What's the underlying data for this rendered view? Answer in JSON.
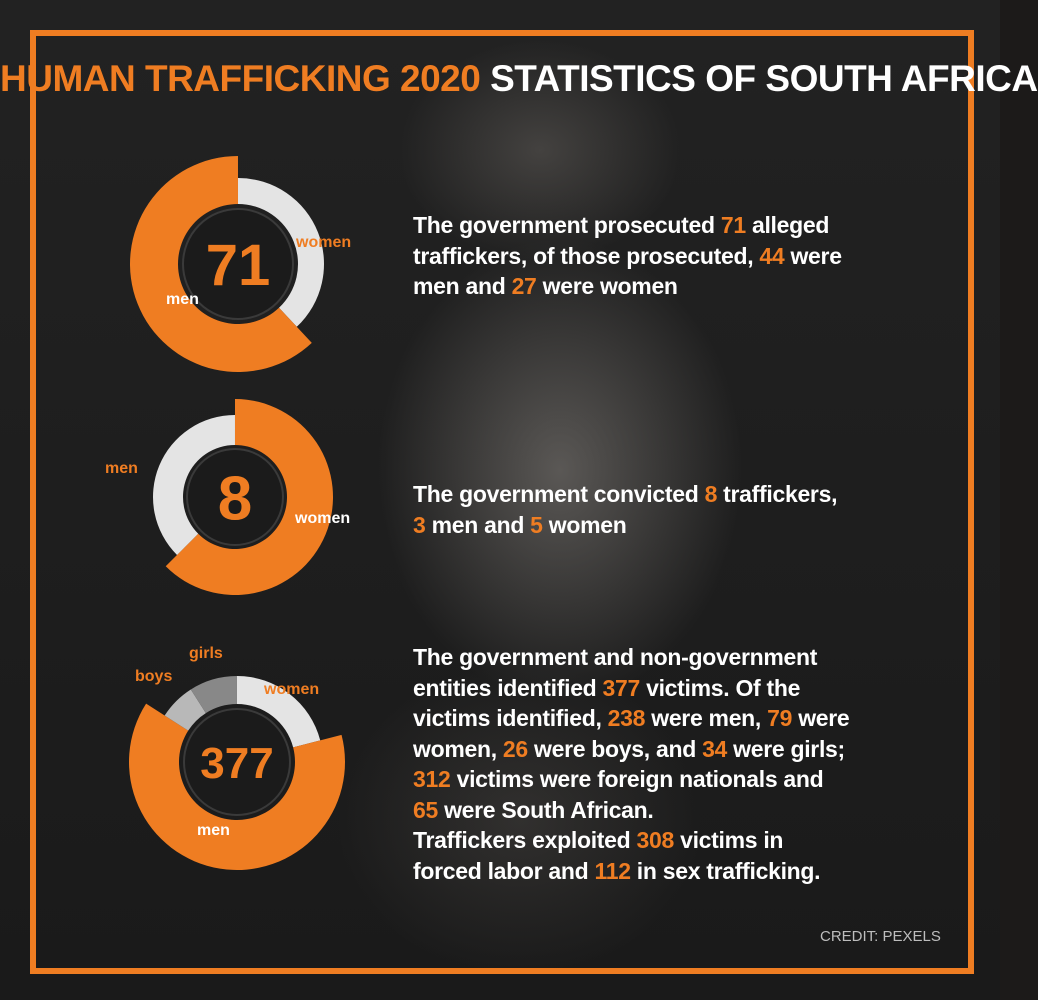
{
  "title": {
    "part1": "HUMAN TRAFFICKING 2020",
    "part2": "STATISTICS OF SOUTH AFRICA"
  },
  "colors": {
    "accent": "#ef7d22",
    "light": "#e4e4e4",
    "gray1": "#888888",
    "gray2": "#b8b8b8",
    "ring": "#2a2a2a"
  },
  "chart_data": [
    {
      "type": "pie",
      "center_label": "71",
      "series": [
        {
          "name": "men",
          "value": 44
        },
        {
          "name": "women",
          "value": 27
        }
      ]
    },
    {
      "type": "pie",
      "center_label": "8",
      "series": [
        {
          "name": "men",
          "value": 3
        },
        {
          "name": "women",
          "value": 5
        }
      ]
    },
    {
      "type": "pie",
      "center_label": "377",
      "series": [
        {
          "name": "men",
          "value": 238
        },
        {
          "name": "women",
          "value": 79
        },
        {
          "name": "boys",
          "value": 26
        },
        {
          "name": "girls",
          "value": 34
        }
      ]
    }
  ],
  "stat1": [
    "The government prosecuted ",
    "71",
    " alleged",
    "traffickers, of those prosecuted, ",
    "44",
    " were",
    "men and ",
    "27",
    " were women"
  ],
  "stat2": [
    "The government convicted ",
    "8",
    " traffickers,",
    "3",
    " men and ",
    "5",
    " women"
  ],
  "stat3": [
    "The government and non-government",
    "entities identified ",
    "377",
    " victims. Of the",
    "victims identified, ",
    "238",
    " were men, ",
    "79",
    " were",
    "women, ",
    "26",
    " were boys, and ",
    "34",
    " were girls;",
    "312",
    " victims were foreign nationals and",
    "65",
    " were South African.",
    "Traffickers exploited ",
    "308",
    " victims in",
    "forced labor and ",
    "112",
    " in sex trafficking."
  ],
  "credit": "CREDIT: PEXELS"
}
